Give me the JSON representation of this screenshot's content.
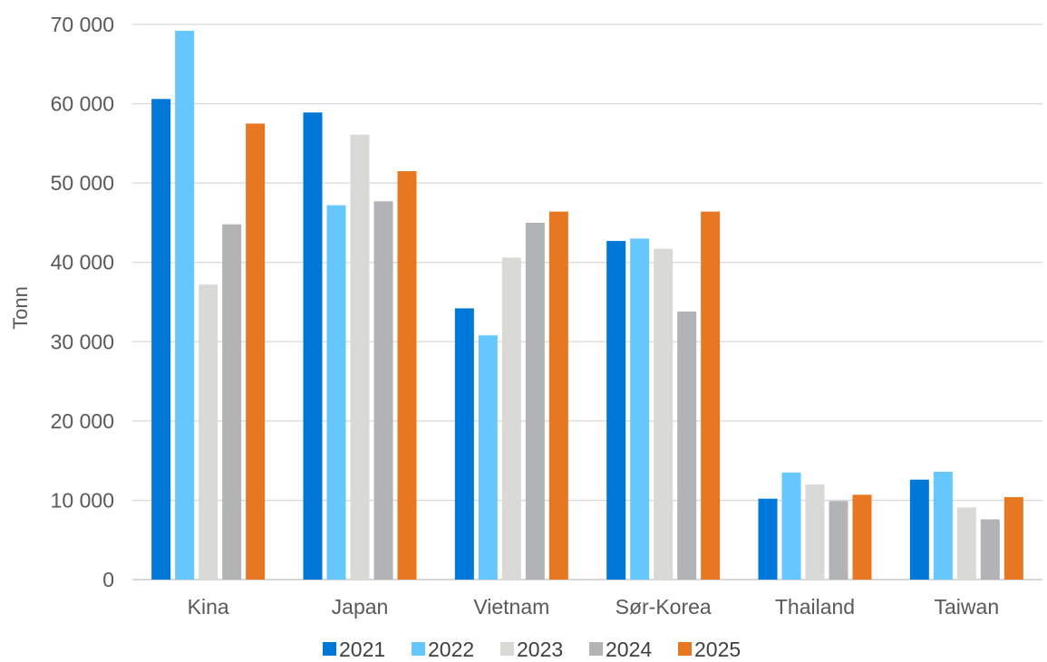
{
  "chart_data": {
    "type": "bar",
    "title": "",
    "xlabel": "",
    "ylabel": "Tonn",
    "ylim": [
      0,
      70000
    ],
    "yticks": [
      0,
      10000,
      20000,
      30000,
      40000,
      50000,
      60000,
      70000
    ],
    "ytick_labels": [
      "0",
      "10 000",
      "20 000",
      "30 000",
      "40 000",
      "50 000",
      "60 000",
      "70 000"
    ],
    "grid": "horizontal",
    "legend_position": "bottom",
    "categories": [
      "Kina",
      "Japan",
      "Vietnam",
      "Sør-Korea",
      "Thailand",
      "Taiwan"
    ],
    "series": [
      {
        "name": "2021",
        "color": "#0078D7",
        "values": [
          60600,
          58900,
          34200,
          42700,
          10200,
          12600
        ]
      },
      {
        "name": "2022",
        "color": "#66C7FC",
        "values": [
          69200,
          47200,
          30800,
          43000,
          13500,
          13600
        ]
      },
      {
        "name": "2023",
        "color": "#D9D9D6",
        "values": [
          37200,
          56100,
          40600,
          41700,
          12000,
          9100
        ]
      },
      {
        "name": "2024",
        "color": "#B2B3B5",
        "values": [
          44800,
          47700,
          45000,
          33800,
          9900,
          7600
        ]
      },
      {
        "name": "2025",
        "color": "#E87722",
        "values": [
          57500,
          51500,
          46400,
          46400,
          10700,
          10400
        ]
      }
    ]
  }
}
